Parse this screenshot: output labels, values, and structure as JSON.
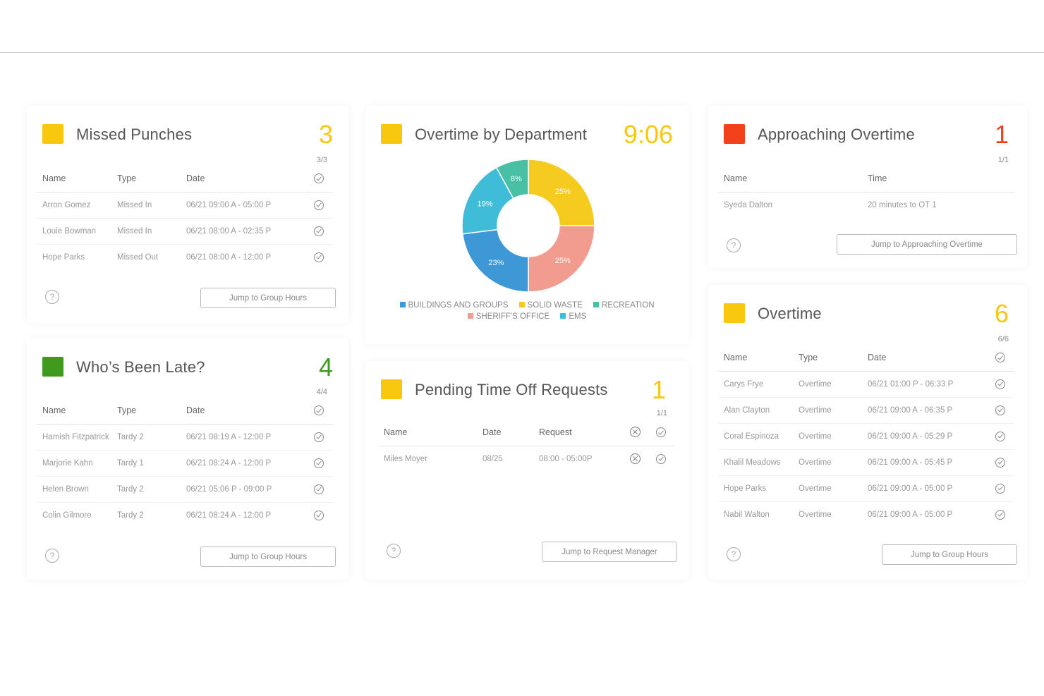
{
  "missed_punches": {
    "title": "Missed Punches",
    "count": "3",
    "ratio": "3/3",
    "color": "#F9C80E",
    "columns": [
      "Name",
      "Type",
      "Date"
    ],
    "rows": [
      [
        "Arron Gomez",
        "Missed In",
        "06/21 09:00 A - 05:00 P"
      ],
      [
        "Louie Bowman",
        "Missed In",
        "06/21 08:00 A - 02:35 P"
      ],
      [
        "Hope Parks",
        "Missed Out",
        "06/21 08:00 A - 12:00 P"
      ]
    ],
    "button": "Jump to Group Hours",
    "help": "?"
  },
  "overtime_by_department": {
    "title": "Overtime by Department",
    "count": "9:06",
    "color": "#F9C80E",
    "chart_data": {
      "type": "pie",
      "donut": true,
      "slices": [
        {
          "label": "SOLID WASTE",
          "value": 25,
          "text": "25%",
          "color": "#F5CB1F"
        },
        {
          "label": "SHERIFF'S OFFICE",
          "value": 25,
          "text": "25%",
          "color": "#F19C8E"
        },
        {
          "label": "BUILDINGS AND GROUPS",
          "value": 23,
          "text": "23%",
          "color": "#3E98D6"
        },
        {
          "label": "EMS",
          "value": 19,
          "text": "19%",
          "color": "#3FBDD8"
        },
        {
          "label": "RECREATION",
          "value": 8,
          "text": "8%",
          "color": "#49BFA4"
        }
      ],
      "legend": [
        {
          "label": "BUILDINGS AND GROUPS",
          "color": "#3E98D6"
        },
        {
          "label": "SOLID WASTE",
          "color": "#F5CB1F"
        },
        {
          "label": "RECREATION",
          "color": "#49BFA4"
        },
        {
          "label": "SHERIFF'S OFFICE",
          "color": "#F19C8E"
        },
        {
          "label": "EMS",
          "color": "#3FBDD8"
        }
      ],
      "legend_placement": "bottom"
    }
  },
  "approaching_overtime": {
    "title": "Approaching Overtime",
    "count": "1",
    "ratio": "1/1",
    "color": "#F2411B",
    "columns": [
      "Name",
      "Time"
    ],
    "rows": [
      [
        "Syeda Dalton",
        "20 minutes to OT 1"
      ]
    ],
    "button": "Jump to Approaching Overtime",
    "help": "?"
  },
  "whos_been_late": {
    "title": "Who’s Been Late?",
    "count": "4",
    "ratio": "4/4",
    "color": "#3F9A1E",
    "columns": [
      "Name",
      "Type",
      "Date"
    ],
    "rows": [
      [
        "Hamish Fitzpatrick",
        "Tardy 2",
        "06/21 08:19 A - 12:00 P"
      ],
      [
        "Marjorie Kahn",
        "Tardy 1",
        "06/21 08:24 A - 12:00 P"
      ],
      [
        "Helen Brown",
        "Tardy 2",
        "06/21 05:06 P - 09:00 P"
      ],
      [
        "Colin Gilmore",
        "Tardy 2",
        "06/21 08:24 A - 12:00 P"
      ]
    ],
    "button": "Jump to Group Hours",
    "help": "?"
  },
  "pending_time_off": {
    "title": "Pending Time Off Requests",
    "count": "1",
    "ratio": "1/1",
    "color": "#F9C80E",
    "columns": [
      "Name",
      "Date",
      "Request"
    ],
    "rows": [
      [
        "Miles Moyer",
        "08/25",
        "08:00 - 05:00P"
      ]
    ],
    "button": "Jump to Request Manager",
    "help": "?"
  },
  "overtime": {
    "title": "Overtime",
    "count": "6",
    "ratio": "6/6",
    "color": "#F9C80E",
    "columns": [
      "Name",
      "Type",
      "Date"
    ],
    "rows": [
      [
        "Carys Frye",
        "Overtime",
        "06/21 01:00 P - 06:33 P"
      ],
      [
        "Alan Clayton",
        "Overtime",
        "06/21 09:00 A - 06:35 P"
      ],
      [
        "Coral Espinoza",
        "Overtime",
        "06/21 09:00 A - 05:29 P"
      ],
      [
        "Khalil Meadows",
        "Overtime",
        "06/21 09:00 A - 05:45 P"
      ],
      [
        "Hope Parks",
        "Overtime",
        "06/21 09:00 A - 05:00 P"
      ],
      [
        "Nabil Walton",
        "Overtime",
        "06/21 09:00 A - 05:00 P"
      ]
    ],
    "button": "Jump to Group Hours",
    "help": "?"
  }
}
